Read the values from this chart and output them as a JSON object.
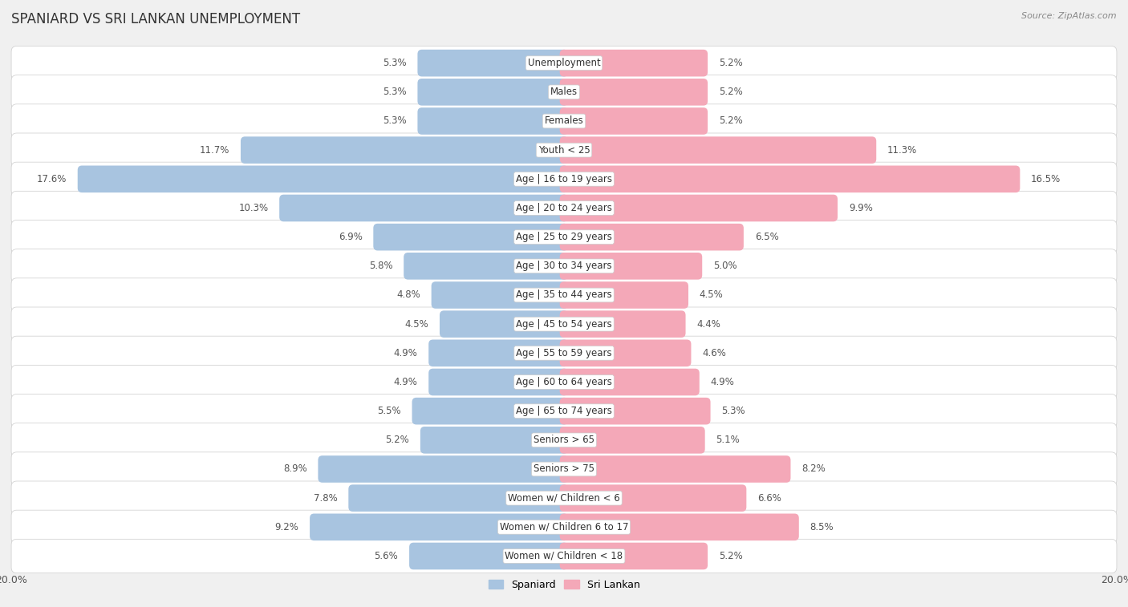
{
  "title": "SPANIARD VS SRI LANKAN UNEMPLOYMENT",
  "source": "Source: ZipAtlas.com",
  "categories": [
    "Unemployment",
    "Males",
    "Females",
    "Youth < 25",
    "Age | 16 to 19 years",
    "Age | 20 to 24 years",
    "Age | 25 to 29 years",
    "Age | 30 to 34 years",
    "Age | 35 to 44 years",
    "Age | 45 to 54 years",
    "Age | 55 to 59 years",
    "Age | 60 to 64 years",
    "Age | 65 to 74 years",
    "Seniors > 65",
    "Seniors > 75",
    "Women w/ Children < 6",
    "Women w/ Children 6 to 17",
    "Women w/ Children < 18"
  ],
  "spaniard": [
    5.3,
    5.3,
    5.3,
    11.7,
    17.6,
    10.3,
    6.9,
    5.8,
    4.8,
    4.5,
    4.9,
    4.9,
    5.5,
    5.2,
    8.9,
    7.8,
    9.2,
    5.6
  ],
  "sri_lankan": [
    5.2,
    5.2,
    5.2,
    11.3,
    16.5,
    9.9,
    6.5,
    5.0,
    4.5,
    4.4,
    4.6,
    4.9,
    5.3,
    5.1,
    8.2,
    6.6,
    8.5,
    5.2
  ],
  "spaniard_color": "#a8c4e0",
  "sri_lankan_color": "#f4a8b8",
  "background_color": "#f0f0f0",
  "row_bg_color": "#e8e8e8",
  "row_inner_color": "#ffffff",
  "axis_max": 20.0,
  "bar_height": 0.62,
  "label_fontsize": 8.5,
  "category_fontsize": 8.5,
  "title_fontsize": 12,
  "source_fontsize": 8
}
